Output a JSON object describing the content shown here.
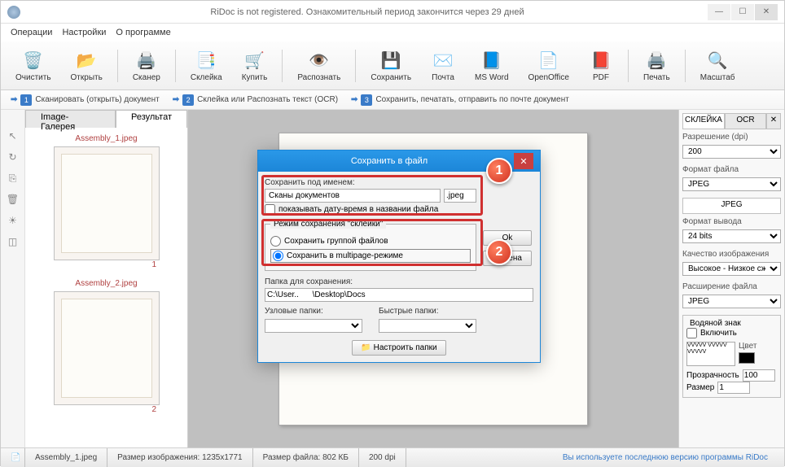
{
  "titlebar": {
    "text": "RiDoc is not registered. Ознакомительный период закончится через 29 дней"
  },
  "menus": [
    "Операции",
    "Настройки",
    "О программе"
  ],
  "toolbar": [
    {
      "label": "Очистить",
      "icon": "🗑️"
    },
    {
      "label": "Открыть",
      "icon": "📂"
    },
    {
      "label": "Сканер",
      "icon": "🖨️"
    },
    {
      "label": "Склейка",
      "icon": "📑"
    },
    {
      "label": "Купить",
      "icon": "🛒"
    },
    {
      "label": "Распознать",
      "icon": "👁️"
    },
    {
      "label": "Сохранить",
      "icon": "💾"
    },
    {
      "label": "Почта",
      "icon": "✉️"
    },
    {
      "label": "MS Word",
      "icon": "📘"
    },
    {
      "label": "OpenOffice",
      "icon": "📄"
    },
    {
      "label": "PDF",
      "icon": "📕"
    },
    {
      "label": "Печать",
      "icon": "🖨️"
    },
    {
      "label": "Масштаб",
      "icon": "🔍"
    }
  ],
  "steps": [
    {
      "n": "1",
      "text": "Сканировать (открыть) документ"
    },
    {
      "n": "2",
      "text": "Склейка или Распознать текст (OCR)"
    },
    {
      "n": "3",
      "text": "Сохранить, печатать, отправить по почте документ"
    }
  ],
  "leftTabs": {
    "gallery": "Image-Галерея",
    "result": "Результат"
  },
  "thumbs": [
    {
      "name": "Assembly_1.jpeg",
      "num": "1"
    },
    {
      "name": "Assembly_2.jpeg",
      "num": "2"
    }
  ],
  "rightPanel": {
    "tabs": {
      "skleyka": "СКЛЕЙКА",
      "ocr": "OCR"
    },
    "resolution_label": "Разрешение (dpi)",
    "resolution": "200",
    "format_label": "Формат файла",
    "format": "JPEG",
    "jpeg_tab": "JPEG",
    "output_label": "Формат вывода",
    "output": "24 bits",
    "quality_label": "Качество изображения",
    "quality": "Высокое - Низкое сжа",
    "ext_label": "Расширение файла",
    "ext": "JPEG",
    "watermark": "Водяной знак",
    "enable": "Включить",
    "color": "Цвет",
    "transparency_label": "Прозрачность",
    "transparency": "100",
    "size_label": "Размер",
    "size": "1"
  },
  "statusbar": {
    "file": "Assembly_1.jpeg",
    "dims": "Размер изображения: 1235x1771",
    "filesize": "Размер файла: 802 КБ",
    "dpi": "200 dpi",
    "link": "Вы используете последнюю версию программы RiDoc"
  },
  "dialog": {
    "title": "Сохранить в файл",
    "save_as_label": "Сохранить под именем:",
    "filename": "Сканы документов",
    "ext": ".jpeg",
    "show_date": "показывать дату-время в названии файла",
    "mode_legend": "Режим сохранения \"склейки\"",
    "radio_group": "Сохранить группой файлов",
    "radio_multi": "Сохранить в multipage-режиме",
    "folder_label": "Папка для сохранения:",
    "folder_path": "C:\\User..      \\Desktop\\Docs",
    "nodefolders": "Узловые папки:",
    "quickfolders": "Быстрые папки:",
    "config_btn": "Настроить папки",
    "ok": "Ok",
    "cancel": "Отмена"
  },
  "markers": {
    "m1": "1",
    "m2": "2"
  },
  "colors": {
    "accent": "#1c86d8",
    "red": "#d03030",
    "thumb_label": "#b04040"
  }
}
